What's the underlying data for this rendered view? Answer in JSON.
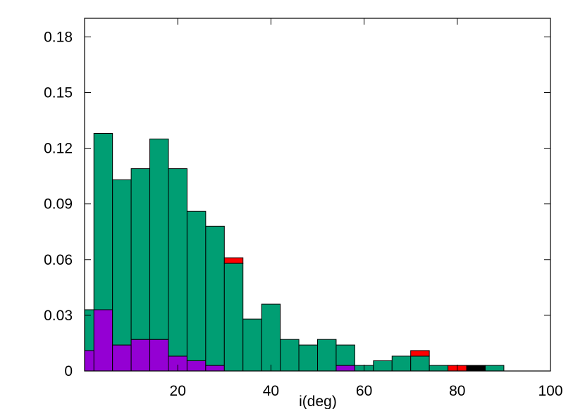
{
  "chart_data": {
    "type": "bar",
    "stacked": true,
    "xlabel": "i(deg)",
    "ylabel": "",
    "title": "",
    "xlim": [
      0,
      100
    ],
    "ylim": [
      0,
      0.19
    ],
    "x_ticks": [
      20,
      40,
      60,
      80,
      100
    ],
    "x_tick_labels": [
      "20",
      "40",
      "60",
      "80",
      "100"
    ],
    "y_ticks": [
      0,
      0.03,
      0.06,
      0.09,
      0.12,
      0.15,
      0.18
    ],
    "y_tick_labels": [
      "0",
      "0.03",
      "0.06",
      "0.09",
      "0.12",
      "0.15",
      "0.18"
    ],
    "grid": false,
    "legend": "none",
    "bin_width": 4,
    "bin_starts": [
      0,
      2,
      6,
      10,
      14,
      18,
      22,
      26,
      30,
      34,
      38,
      42,
      46,
      50,
      54,
      58,
      62,
      66,
      70,
      74,
      78,
      82,
      86
    ],
    "series": [
      {
        "color": "#9400d3",
        "values": [
          0.011,
          0.033,
          0.014,
          0.017,
          0.017,
          0.008,
          0.0055,
          0.003,
          0,
          0,
          0,
          0,
          0,
          0,
          0.003,
          0,
          0,
          0,
          0,
          0,
          0,
          0,
          0
        ]
      },
      {
        "color": "#009e73",
        "values": [
          0.022,
          0.095,
          0.089,
          0.092,
          0.108,
          0.101,
          0.0805,
          0.075,
          0.058,
          0.028,
          0.036,
          0.017,
          0.014,
          0.017,
          0.011,
          0.003,
          0.0055,
          0.008,
          0.008,
          0.003,
          0,
          0,
          0.003
        ]
      },
      {
        "color": "#ff0000",
        "values": [
          0,
          0,
          0,
          0,
          0,
          0,
          0,
          0,
          0.003,
          0,
          0,
          0,
          0,
          0,
          0,
          0,
          0,
          0,
          0.003,
          0,
          0.003,
          0,
          0
        ]
      },
      {
        "color": "#000000",
        "values": [
          0,
          0,
          0,
          0,
          0,
          0,
          0,
          0,
          0,
          0,
          0,
          0,
          0,
          0,
          0,
          0,
          0,
          0,
          0,
          0,
          0,
          0.003,
          0
        ]
      }
    ]
  }
}
